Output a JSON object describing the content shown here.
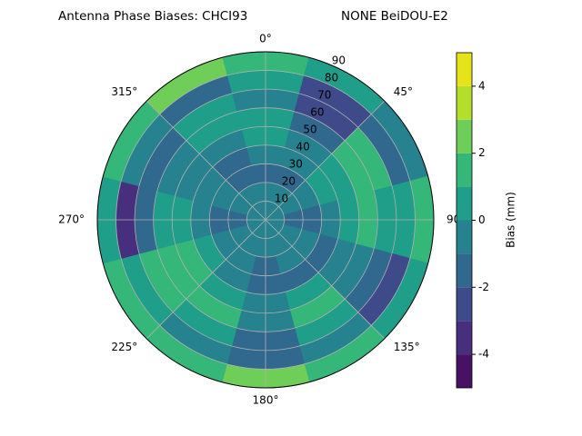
{
  "chart_data": {
    "type": "polar_contour",
    "title": "Antenna Phase Biases: CHCI93",
    "subtitle": "NONE BeiDOU-E2",
    "azimuth_ticks": [
      {
        "value": 0,
        "label": "0°"
      },
      {
        "value": 45,
        "label": "45°"
      },
      {
        "value": 90,
        "label": "90"
      },
      {
        "value": 135,
        "label": "135°"
      },
      {
        "value": 180,
        "label": "180°"
      },
      {
        "value": 225,
        "label": "225°"
      },
      {
        "value": 270,
        "label": "270°"
      },
      {
        "value": 315,
        "label": "315°"
      }
    ],
    "rlim": [
      0,
      90
    ],
    "rticks": [
      10,
      20,
      30,
      40,
      50,
      60,
      70,
      80,
      90
    ],
    "azimuth": [
      0,
      30,
      60,
      90,
      120,
      150,
      180,
      210,
      240,
      270,
      300,
      330
    ],
    "zenith_bins": [
      0,
      10,
      20,
      30,
      40,
      50,
      60,
      70,
      80,
      90
    ],
    "values": [
      [
        -0.5,
        -0.5,
        -0.5,
        -0.5,
        -0.5,
        -0.5,
        -0.5,
        -0.5,
        -0.5,
        -0.5,
        -0.5,
        -0.5
      ],
      [
        -0.5,
        -0.5,
        -0.5,
        -1.5,
        -0.5,
        -0.5,
        -0.5,
        -0.5,
        -0.5,
        -1.5,
        -0.5,
        -0.5
      ],
      [
        -1.5,
        -1.5,
        -0.5,
        -1.5,
        -0.5,
        -0.5,
        -1.5,
        -0.5,
        -0.5,
        -1.5,
        -0.5,
        -1.5
      ],
      [
        -0.5,
        -0.5,
        0.5,
        -0.5,
        -1.5,
        -1.5,
        -1.5,
        -0.5,
        0.5,
        -0.5,
        -0.5,
        -1.5
      ],
      [
        0.5,
        -0.5,
        0.5,
        0.5,
        -0.5,
        0.5,
        -0.5,
        0.5,
        1.5,
        0.5,
        -0.5,
        -0.5
      ],
      [
        0.5,
        -1.5,
        1.5,
        1.5,
        -0.5,
        1.5,
        -0.5,
        1.5,
        1.5,
        0.5,
        -0.5,
        0.5
      ],
      [
        -0.5,
        -2.5,
        1.5,
        0.5,
        -1.5,
        0.5,
        -1.5,
        0.5,
        1.5,
        -1.5,
        -1.5,
        0.5
      ],
      [
        0.5,
        -2.5,
        -1.5,
        0.5,
        -2.5,
        -0.5,
        -1.5,
        -0.5,
        0.5,
        -3.5,
        -0.5,
        -1.5
      ],
      [
        1.5,
        0.5,
        -0.5,
        1.5,
        0.5,
        1.5,
        2.5,
        1.5,
        1.5,
        0.5,
        1.5,
        2.5
      ]
    ],
    "levels": [
      -5,
      -4,
      -3,
      -2,
      -1,
      0,
      1,
      2,
      3,
      4,
      5
    ],
    "colors": [
      "#471164",
      "#472f7d",
      "#3e4a89",
      "#31688e",
      "#26828e",
      "#1f9e89",
      "#35b779",
      "#6ece58",
      "#b5de2b",
      "#e5e419"
    ],
    "colorbar_ticks": [
      -4,
      -2,
      0,
      2,
      4
    ],
    "colorbar_label": "Bias (mm)",
    "grid": true
  }
}
